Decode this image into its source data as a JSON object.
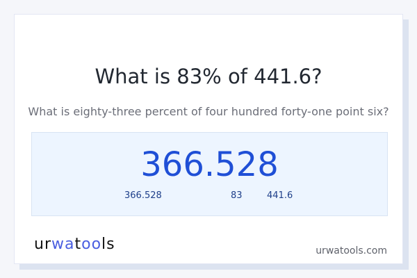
{
  "title": "What is 83% of 441.6?",
  "subtitle": "What is eighty-three percent of four hundred forty-one point six?",
  "result": "366.528",
  "details": {
    "result": "366.528",
    "percent": "83",
    "base": "441.6"
  },
  "logo": {
    "part1": "ur",
    "part2": "wa",
    "part3": "t",
    "part4": "oo",
    "part5": "ls"
  },
  "site": "urwatools.com",
  "colors": {
    "accent": "#1f4fd6",
    "box_bg": "#edf5ff"
  }
}
